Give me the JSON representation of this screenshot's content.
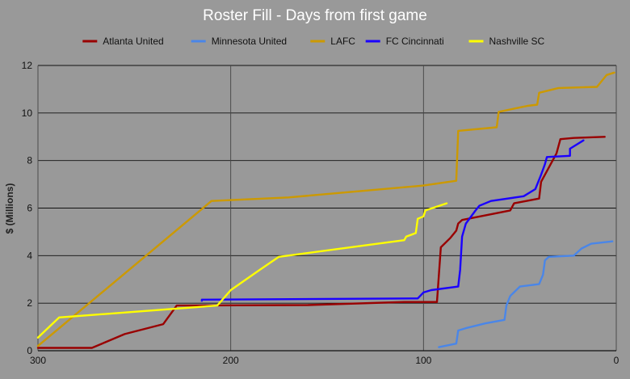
{
  "chart_data": {
    "type": "line",
    "title": "Roster Fill - Days from first game",
    "xlabel": "",
    "ylabel": "$ (Millions)",
    "xlim": [
      300,
      0
    ],
    "ylim": [
      0,
      12
    ],
    "x_ticks": [
      "300",
      "200",
      "100",
      "0"
    ],
    "y_ticks": [
      "0",
      "2",
      "4",
      "6",
      "8",
      "10",
      "12"
    ],
    "grid": true,
    "legend_position": "top",
    "background": "#999999",
    "series": [
      {
        "name": "Atlanta United",
        "color": "#990000",
        "points": [
          [
            300,
            0.12
          ],
          [
            272,
            0.12
          ],
          [
            255,
            0.7
          ],
          [
            235,
            1.12
          ],
          [
            228,
            1.9
          ],
          [
            160,
            1.92
          ],
          [
            110,
            2.05
          ],
          [
            93,
            2.05
          ],
          [
            91,
            4.35
          ],
          [
            86,
            4.75
          ],
          [
            84,
            4.95
          ],
          [
            83,
            5.05
          ],
          [
            82,
            5.35
          ],
          [
            80,
            5.5
          ],
          [
            55,
            5.9
          ],
          [
            53,
            6.2
          ],
          [
            40,
            6.4
          ],
          [
            39,
            7.1
          ],
          [
            31,
            8.3
          ],
          [
            29,
            8.9
          ],
          [
            22,
            8.95
          ],
          [
            6,
            9.0
          ]
        ]
      },
      {
        "name": "Minnesota United",
        "color": "#4a86e8",
        "points": [
          [
            92,
            0.15
          ],
          [
            83,
            0.3
          ],
          [
            82,
            0.85
          ],
          [
            78,
            0.95
          ],
          [
            68,
            1.15
          ],
          [
            58,
            1.3
          ],
          [
            57,
            1.9
          ],
          [
            55,
            2.3
          ],
          [
            50,
            2.7
          ],
          [
            40,
            2.8
          ],
          [
            38,
            3.2
          ],
          [
            37,
            3.8
          ],
          [
            35,
            3.95
          ],
          [
            22,
            4.0
          ],
          [
            18,
            4.3
          ],
          [
            13,
            4.5
          ],
          [
            2,
            4.6
          ]
        ]
      },
      {
        "name": "LAFC",
        "color": "#cc9900",
        "points": [
          [
            300,
            0.2
          ],
          [
            210,
            6.3
          ],
          [
            170,
            6.45
          ],
          [
            100,
            6.95
          ],
          [
            83,
            7.15
          ],
          [
            82,
            9.25
          ],
          [
            62,
            9.4
          ],
          [
            61,
            10.05
          ],
          [
            46,
            10.3
          ],
          [
            41,
            10.35
          ],
          [
            40,
            10.85
          ],
          [
            30,
            11.05
          ],
          [
            10,
            11.1
          ],
          [
            5,
            11.6
          ],
          [
            1,
            11.7
          ]
        ]
      },
      {
        "name": "FC Cincinnati",
        "color": "#1a00ff",
        "points": [
          [
            215,
            2.1
          ],
          [
            215,
            2.15
          ],
          [
            103,
            2.2
          ],
          [
            100,
            2.45
          ],
          [
            96,
            2.55
          ],
          [
            82,
            2.7
          ],
          [
            81,
            3.4
          ],
          [
            80,
            4.8
          ],
          [
            78,
            5.35
          ],
          [
            73,
            5.9
          ],
          [
            71,
            6.1
          ],
          [
            65,
            6.3
          ],
          [
            48,
            6.5
          ],
          [
            42,
            6.8
          ],
          [
            39,
            7.4
          ],
          [
            37,
            7.85
          ],
          [
            36,
            8.15
          ],
          [
            24,
            8.2
          ],
          [
            24,
            8.5
          ],
          [
            17,
            8.85
          ]
        ]
      },
      {
        "name": "Nashville SC",
        "color": "#ffff00",
        "points": [
          [
            300,
            0.55
          ],
          [
            289,
            1.4
          ],
          [
            207,
            1.9
          ],
          [
            200,
            2.55
          ],
          [
            185,
            3.4
          ],
          [
            175,
            3.95
          ],
          [
            110,
            4.65
          ],
          [
            109,
            4.8
          ],
          [
            104,
            4.95
          ],
          [
            103,
            5.55
          ],
          [
            100,
            5.65
          ],
          [
            99,
            5.9
          ],
          [
            88,
            6.2
          ]
        ]
      }
    ]
  }
}
